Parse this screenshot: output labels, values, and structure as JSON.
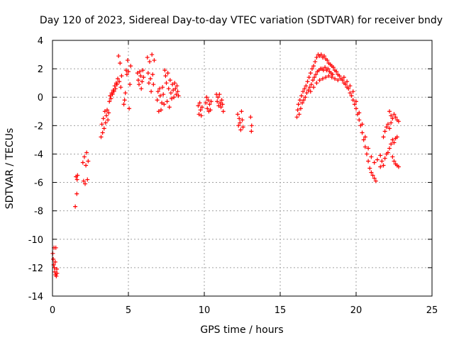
{
  "chart_data": {
    "type": "scatter",
    "title": "Day 120 of 2023, Sidereal Day-to-day VTEC variation (SDTVAR) for receiver bndy",
    "xlabel": "GPS time / hours",
    "ylabel": "SDTVAR / TECUs",
    "xlim": [
      0,
      25
    ],
    "ylim": [
      -14,
      4
    ],
    "xticks": [
      0,
      5,
      10,
      15,
      20,
      25
    ],
    "yticks": [
      -14,
      -12,
      -10,
      -8,
      -6,
      -4,
      -2,
      0,
      2,
      4
    ],
    "grid": true,
    "marker": "+",
    "color": "#ff0000",
    "series": [
      {
        "name": "SDTVAR",
        "points": [
          [
            0.02,
            -11.0
          ],
          [
            0.05,
            -11.4
          ],
          [
            0.08,
            -11.8
          ],
          [
            0.1,
            -10.6
          ],
          [
            0.12,
            -12.0
          ],
          [
            0.15,
            -12.3
          ],
          [
            0.18,
            -11.6
          ],
          [
            0.2,
            -12.5
          ],
          [
            0.22,
            -10.6
          ],
          [
            0.25,
            -12.6
          ],
          [
            0.28,
            -12.1
          ],
          [
            0.3,
            -12.4
          ],
          [
            1.5,
            -7.7
          ],
          [
            1.55,
            -5.6
          ],
          [
            1.6,
            -6.8
          ],
          [
            1.62,
            -5.8
          ],
          [
            1.65,
            -5.5
          ],
          [
            2.0,
            -4.6
          ],
          [
            2.05,
            -5.9
          ],
          [
            2.1,
            -4.2
          ],
          [
            2.15,
            -6.1
          ],
          [
            2.2,
            -4.8
          ],
          [
            2.25,
            -3.9
          ],
          [
            2.3,
            -5.8
          ],
          [
            2.35,
            -4.5
          ],
          [
            3.2,
            -2.8
          ],
          [
            3.25,
            -1.9
          ],
          [
            3.3,
            -2.5
          ],
          [
            3.35,
            -1.5
          ],
          [
            3.4,
            -2.2
          ],
          [
            3.45,
            -1.0
          ],
          [
            3.5,
            -1.8
          ],
          [
            3.55,
            -1.3
          ],
          [
            3.6,
            -0.9
          ],
          [
            3.65,
            -1.6
          ],
          [
            3.7,
            -1.1
          ],
          [
            3.75,
            -0.3
          ],
          [
            3.8,
            0.1
          ],
          [
            3.85,
            -0.1
          ],
          [
            3.9,
            0.3
          ],
          [
            3.95,
            0.2
          ],
          [
            4.0,
            0.5
          ],
          [
            4.05,
            0.4
          ],
          [
            4.1,
            0.8
          ],
          [
            4.15,
            0.6
          ],
          [
            4.2,
            1.0
          ],
          [
            4.25,
            0.9
          ],
          [
            4.3,
            1.3
          ],
          [
            4.35,
            2.9
          ],
          [
            4.4,
            1.1
          ],
          [
            4.45,
            2.4
          ],
          [
            4.5,
            0.7
          ],
          [
            4.55,
            1.5
          ],
          [
            4.7,
            -0.5
          ],
          [
            4.75,
            -0.2
          ],
          [
            4.8,
            0.3
          ],
          [
            4.85,
            1.9
          ],
          [
            4.9,
            1.6
          ],
          [
            4.95,
            2.6
          ],
          [
            5.0,
            1.8
          ],
          [
            5.05,
            -0.8
          ],
          [
            5.1,
            0.9
          ],
          [
            5.15,
            2.2
          ],
          [
            5.6,
            1.7
          ],
          [
            5.65,
            1.2
          ],
          [
            5.7,
            0.9
          ],
          [
            5.75,
            1.8
          ],
          [
            5.8,
            1.5
          ],
          [
            5.85,
            0.6
          ],
          [
            5.9,
            1.1
          ],
          [
            5.95,
            1.9
          ],
          [
            6.0,
            1.4
          ],
          [
            6.25,
            2.8
          ],
          [
            6.3,
            1.7
          ],
          [
            6.35,
            1.0
          ],
          [
            6.4,
            2.5
          ],
          [
            6.45,
            1.3
          ],
          [
            6.5,
            0.4
          ],
          [
            6.55,
            3.0
          ],
          [
            6.6,
            1.6
          ],
          [
            6.65,
            0.9
          ],
          [
            6.7,
            2.6
          ],
          [
            6.9,
            -0.2
          ],
          [
            6.95,
            0.4
          ],
          [
            7.0,
            -1.0
          ],
          [
            7.05,
            0.6
          ],
          [
            7.1,
            0.1
          ],
          [
            7.15,
            -0.9
          ],
          [
            7.2,
            -0.4
          ],
          [
            7.25,
            0.7
          ],
          [
            7.3,
            0.2
          ],
          [
            7.35,
            -0.5
          ],
          [
            7.4,
            1.9
          ],
          [
            7.45,
            1.5
          ],
          [
            7.5,
            1.0
          ],
          [
            7.55,
            -0.3
          ],
          [
            7.6,
            1.7
          ],
          [
            7.65,
            0.6
          ],
          [
            7.7,
            -0.7
          ],
          [
            7.75,
            1.2
          ],
          [
            7.8,
            0.3
          ],
          [
            7.85,
            -0.1
          ],
          [
            7.9,
            0.9
          ],
          [
            7.95,
            0.5
          ],
          [
            8.0,
            0.0
          ],
          [
            8.05,
            1.0
          ],
          [
            8.1,
            0.6
          ],
          [
            8.15,
            0.2
          ],
          [
            8.2,
            0.8
          ],
          [
            8.25,
            0.4
          ],
          [
            8.3,
            0.1
          ],
          [
            9.6,
            -0.6
          ],
          [
            9.65,
            -1.2
          ],
          [
            9.7,
            -0.4
          ],
          [
            9.75,
            -0.9
          ],
          [
            9.8,
            -1.3
          ],
          [
            9.85,
            -0.7
          ],
          [
            10.1,
            -0.4
          ],
          [
            10.15,
            0.0
          ],
          [
            10.2,
            -0.8
          ],
          [
            10.25,
            -0.2
          ],
          [
            10.3,
            -1.0
          ],
          [
            10.35,
            -0.5
          ],
          [
            10.4,
            -0.9
          ],
          [
            10.45,
            -0.3
          ],
          [
            10.8,
            0.2
          ],
          [
            10.85,
            -0.3
          ],
          [
            10.9,
            0.0
          ],
          [
            10.95,
            -0.6
          ],
          [
            11.0,
            0.2
          ],
          [
            11.05,
            -0.4
          ],
          [
            11.1,
            -0.7
          ],
          [
            11.15,
            -0.2
          ],
          [
            11.2,
            -0.5
          ],
          [
            11.25,
            -1.0
          ],
          [
            12.2,
            -1.2
          ],
          [
            12.25,
            -2.0
          ],
          [
            12.3,
            -1.5
          ],
          [
            12.35,
            -1.8
          ],
          [
            12.4,
            -2.3
          ],
          [
            12.45,
            -1.0
          ],
          [
            12.5,
            -1.6
          ],
          [
            12.55,
            -2.1
          ],
          [
            13.05,
            -1.4
          ],
          [
            13.1,
            -2.4
          ],
          [
            13.12,
            -2.0
          ],
          [
            16.1,
            -1.4
          ],
          [
            16.15,
            -0.9
          ],
          [
            16.2,
            -0.5
          ],
          [
            16.25,
            -1.2
          ],
          [
            16.3,
            -0.2
          ],
          [
            16.35,
            -0.8
          ],
          [
            16.4,
            0.1
          ],
          [
            16.45,
            -0.4
          ],
          [
            16.5,
            0.4
          ],
          [
            16.55,
            -0.2
          ],
          [
            16.6,
            0.6
          ],
          [
            16.65,
            0.0
          ],
          [
            16.7,
            0.8
          ],
          [
            16.75,
            0.3
          ],
          [
            16.8,
            1.1
          ],
          [
            16.85,
            0.5
          ],
          [
            16.9,
            1.4
          ],
          [
            16.95,
            0.7
          ],
          [
            17.0,
            1.7
          ],
          [
            17.05,
            0.9
          ],
          [
            17.1,
            2.0
          ],
          [
            17.15,
            1.2
          ],
          [
            17.2,
            2.2
          ],
          [
            17.25,
            1.4
          ],
          [
            17.3,
            2.5
          ],
          [
            17.35,
            1.6
          ],
          [
            17.4,
            2.8
          ],
          [
            17.45,
            1.8
          ],
          [
            17.5,
            3.0
          ],
          [
            17.55,
            1.9
          ],
          [
            17.6,
            2.9
          ],
          [
            17.65,
            2.0
          ],
          [
            17.7,
            3.0
          ],
          [
            17.75,
            2.0
          ],
          [
            17.8,
            2.8
          ],
          [
            17.85,
            1.9
          ],
          [
            17.9,
            2.9
          ],
          [
            17.95,
            2.1
          ],
          [
            18.0,
            2.7
          ],
          [
            18.05,
            1.9
          ],
          [
            18.1,
            2.6
          ],
          [
            18.15,
            2.0
          ],
          [
            18.2,
            2.4
          ],
          [
            18.25,
            1.8
          ],
          [
            18.3,
            2.3
          ],
          [
            18.35,
            1.7
          ],
          [
            18.4,
            2.2
          ],
          [
            18.45,
            1.6
          ],
          [
            17.0,
            0.4
          ],
          [
            17.2,
            0.7
          ],
          [
            17.4,
            1.0
          ],
          [
            17.6,
            1.2
          ],
          [
            17.8,
            1.3
          ],
          [
            18.0,
            1.4
          ],
          [
            18.2,
            1.5
          ],
          [
            18.4,
            1.4
          ],
          [
            18.6,
            1.3
          ],
          [
            18.8,
            1.2
          ],
          [
            18.5,
            2.1
          ],
          [
            18.6,
            1.9
          ],
          [
            18.7,
            1.8
          ],
          [
            18.8,
            1.6
          ],
          [
            18.9,
            1.5
          ],
          [
            19.0,
            1.3
          ],
          [
            19.1,
            1.2
          ],
          [
            19.2,
            1.0
          ],
          [
            19.3,
            0.9
          ],
          [
            19.4,
            0.7
          ],
          [
            19.5,
            0.6
          ],
          [
            19.6,
            0.3
          ],
          [
            19.7,
            0.1
          ],
          [
            19.8,
            -0.2
          ],
          [
            19.9,
            -0.5
          ],
          [
            20.0,
            -0.8
          ],
          [
            20.1,
            -1.2
          ],
          [
            20.2,
            -1.6
          ],
          [
            20.3,
            -2.0
          ],
          [
            20.4,
            -2.5
          ],
          [
            20.5,
            -3.0
          ],
          [
            20.6,
            -3.5
          ],
          [
            20.7,
            -4.0
          ],
          [
            20.8,
            -4.5
          ],
          [
            20.9,
            -5.0
          ],
          [
            21.0,
            -5.3
          ],
          [
            21.1,
            -5.5
          ],
          [
            21.2,
            -5.7
          ],
          [
            21.3,
            -5.9
          ],
          [
            19.2,
            1.4
          ],
          [
            19.4,
            1.1
          ],
          [
            19.6,
            0.8
          ],
          [
            19.8,
            0.4
          ],
          [
            20.0,
            -0.3
          ],
          [
            20.2,
            -1.1
          ],
          [
            20.4,
            -1.9
          ],
          [
            20.6,
            -2.8
          ],
          [
            20.8,
            -3.6
          ],
          [
            21.0,
            -4.2
          ],
          [
            21.2,
            -4.6
          ],
          [
            21.4,
            -4.4
          ],
          [
            21.6,
            -4.1
          ],
          [
            21.6,
            -4.9
          ],
          [
            21.7,
            -4.5
          ],
          [
            21.8,
            -4.8
          ],
          [
            21.9,
            -4.3
          ],
          [
            22.0,
            -4.0
          ],
          [
            22.1,
            -3.9
          ],
          [
            22.2,
            -3.6
          ],
          [
            22.3,
            -3.3
          ],
          [
            22.4,
            -3.0
          ],
          [
            22.5,
            -3.2
          ],
          [
            22.6,
            -2.9
          ],
          [
            22.7,
            -2.8
          ],
          [
            21.8,
            -2.8
          ],
          [
            21.9,
            -2.4
          ],
          [
            22.0,
            -2.1
          ],
          [
            22.1,
            -1.9
          ],
          [
            22.2,
            -2.2
          ],
          [
            22.3,
            -1.8
          ],
          [
            22.4,
            -1.5
          ],
          [
            22.5,
            -1.2
          ],
          [
            22.6,
            -1.4
          ],
          [
            22.7,
            -1.6
          ],
          [
            22.8,
            -1.7
          ],
          [
            22.4,
            -4.2
          ],
          [
            22.5,
            -4.5
          ],
          [
            22.6,
            -4.7
          ],
          [
            22.7,
            -4.8
          ],
          [
            22.8,
            -4.9
          ],
          [
            22.2,
            -1.0
          ],
          [
            22.3,
            -1.3
          ]
        ]
      }
    ]
  }
}
